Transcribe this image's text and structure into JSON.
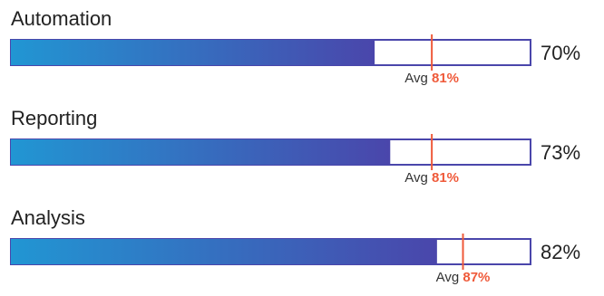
{
  "chart_data": {
    "type": "bar",
    "orientation": "horizontal",
    "xlim": [
      0,
      100
    ],
    "value_suffix": "%",
    "avg_prefix": "Avg",
    "categories": [
      "Automation",
      "Reporting",
      "Analysis"
    ],
    "values": [
      70,
      73,
      82
    ],
    "averages": [
      81,
      81,
      87
    ],
    "colors": {
      "gradient_start": "#2196d3",
      "gradient_end": "#4a46ab",
      "outline": "#4a46ab",
      "average_marker": "#ef5a3a"
    }
  }
}
